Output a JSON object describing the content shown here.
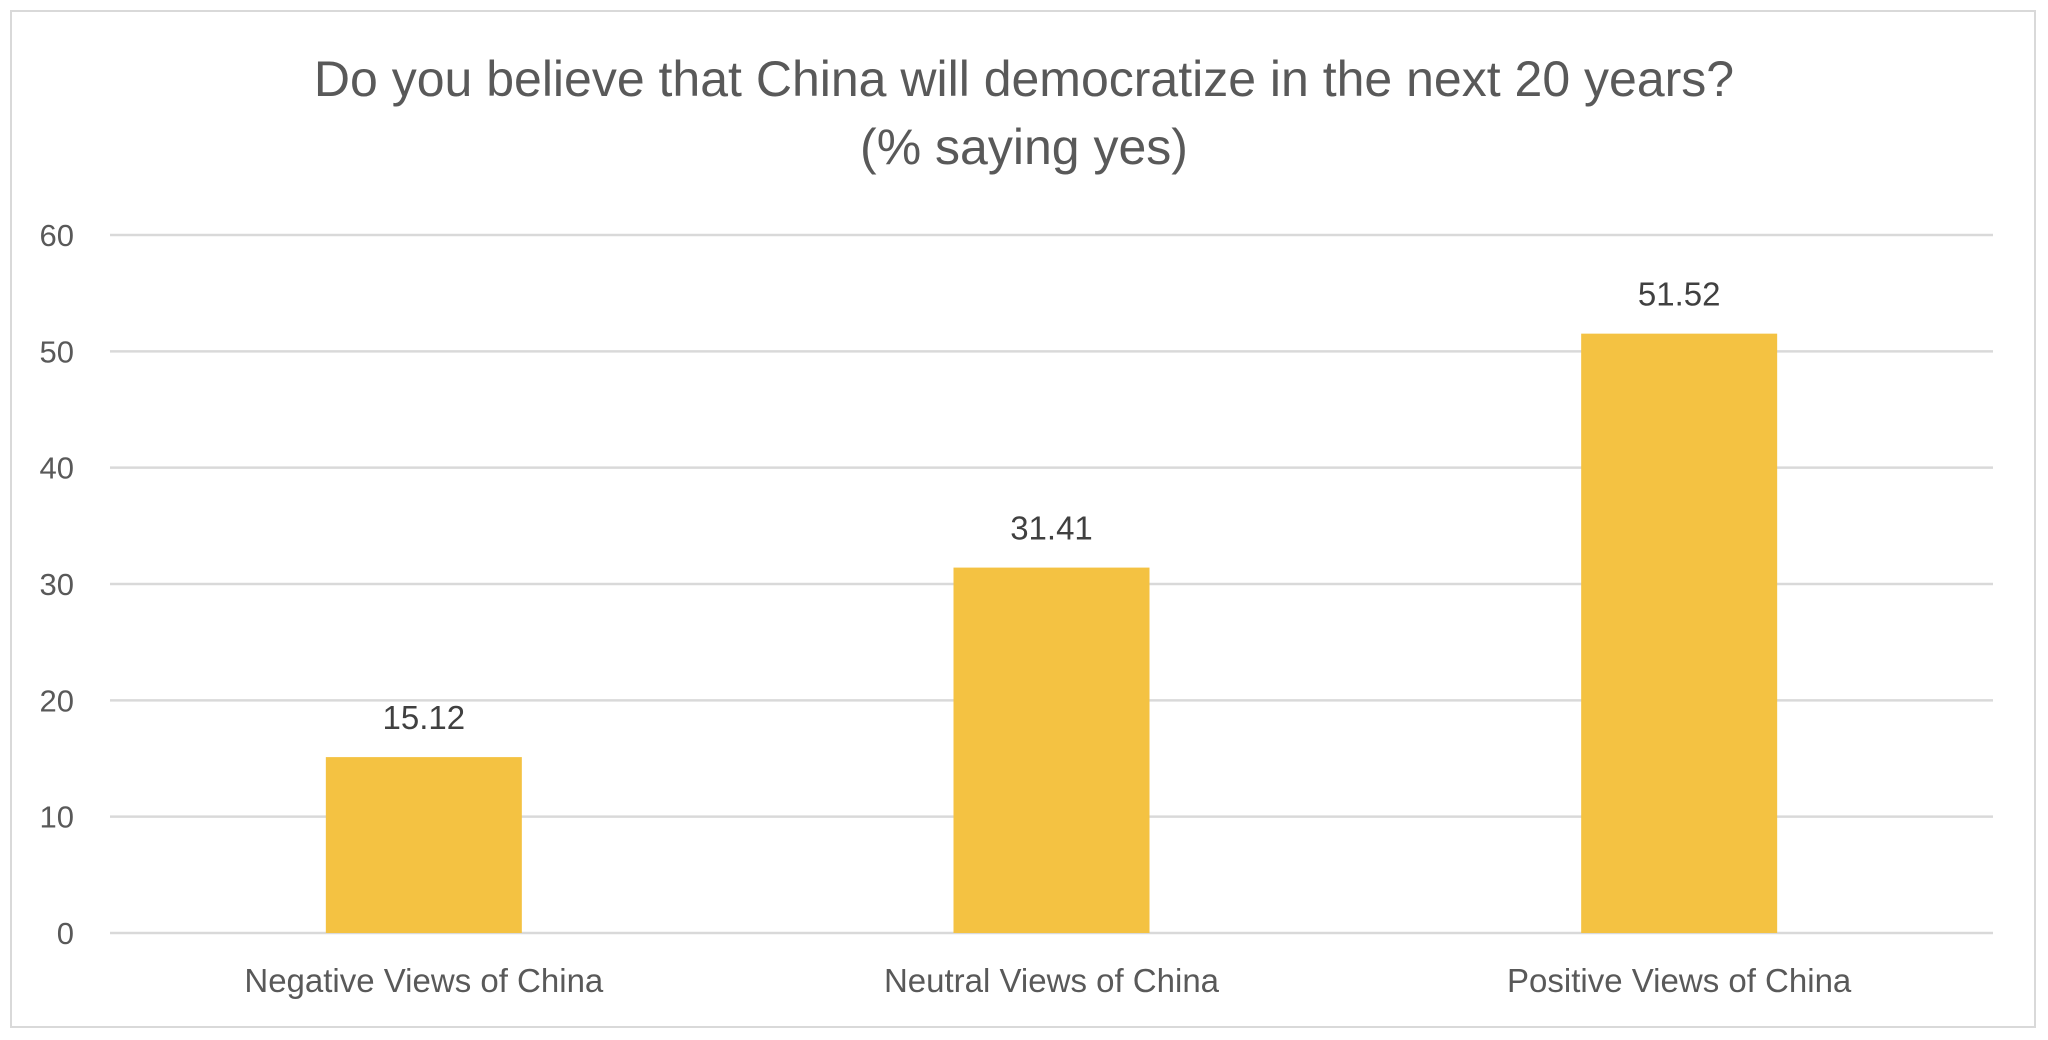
{
  "chart_data": {
    "type": "bar",
    "title": "Do you believe that China will democratize in the next 20 years?",
    "subtitle": "(% saying yes)",
    "categories": [
      "Negative Views of China",
      "Neutral Views of China",
      "Positive Views of China"
    ],
    "values": [
      15.12,
      31.41,
      51.52
    ],
    "data_labels": [
      "15.12",
      "31.41",
      "51.52"
    ],
    "y_ticks": [
      "0",
      "10",
      "20",
      "30",
      "40",
      "50",
      "60"
    ],
    "ylim": [
      0,
      60
    ],
    "grid": true,
    "legend": "none",
    "bar_color": "#F4C242",
    "xlabel": "",
    "ylabel": ""
  }
}
